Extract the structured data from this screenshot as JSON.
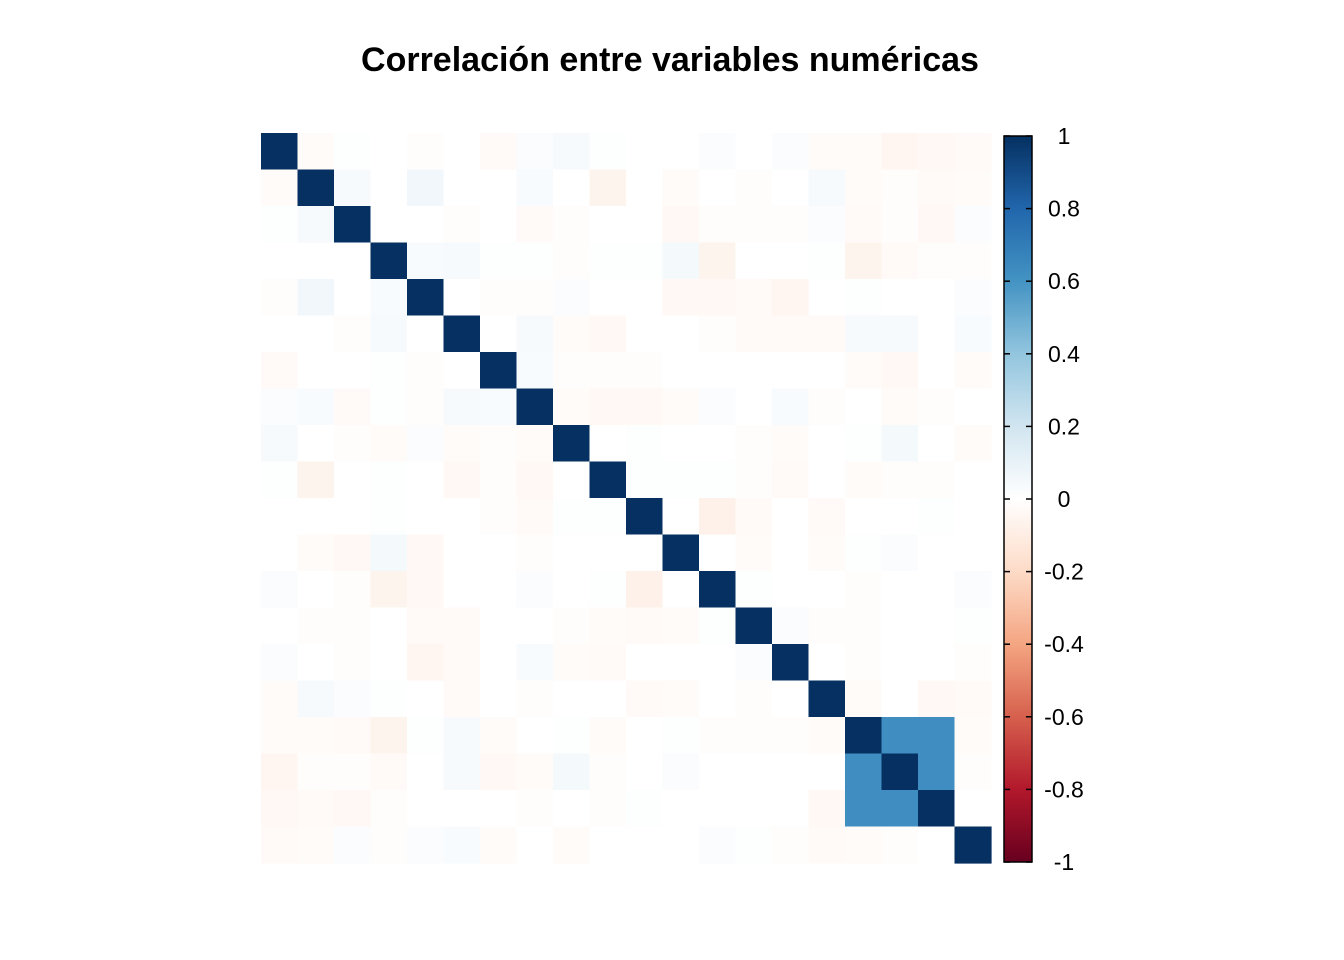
{
  "chart_data": {
    "type": "heatmap",
    "title": "Correlación entre variables numéricas",
    "xlabel": "",
    "ylabel": "",
    "n": 20,
    "value_range": [
      -1,
      1
    ],
    "legend": {
      "position": "right",
      "ticks": [
        "1",
        "0.8",
        "0.6",
        "0.4",
        "0.2",
        "0",
        "-0.2",
        "-0.4",
        "-0.6",
        "-0.8",
        "-1"
      ],
      "tick_values": [
        1,
        0.8,
        0.6,
        0.4,
        0.2,
        0,
        -0.2,
        -0.4,
        -0.6,
        -0.8,
        -1
      ]
    },
    "colorscale": [
      "#67001f",
      "#b2182b",
      "#d6604d",
      "#f4a582",
      "#fddbc7",
      "#ffffff",
      "#d1e5f0",
      "#92c5de",
      "#4393c3",
      "#2166ac",
      "#053061"
    ],
    "matrix": [
      [
        1,
        -0.02,
        0.01,
        0,
        -0.01,
        0,
        -0.03,
        0.02,
        0.04,
        0.01,
        0,
        0,
        0.02,
        0,
        0.02,
        -0.02,
        -0.02,
        -0.05,
        -0.04,
        -0.03
      ],
      [
        -0.02,
        1,
        0.04,
        0,
        0.06,
        0,
        0,
        0.03,
        0,
        -0.06,
        0,
        -0.02,
        0,
        -0.01,
        0,
        0.04,
        -0.02,
        -0.01,
        -0.03,
        -0.02
      ],
      [
        0.01,
        0.04,
        1,
        0,
        0,
        -0.01,
        0,
        -0.03,
        -0.01,
        0,
        0,
        -0.04,
        -0.01,
        -0.01,
        -0.01,
        0.02,
        -0.03,
        -0.01,
        -0.04,
        0.02
      ],
      [
        0,
        0,
        0,
        1,
        0.03,
        0.04,
        0.01,
        0.01,
        -0.01,
        0.01,
        0.01,
        0.05,
        -0.06,
        0,
        0,
        0.01,
        -0.06,
        -0.03,
        -0.01,
        -0.01
      ],
      [
        -0.01,
        0.06,
        0,
        0.03,
        1,
        0,
        -0.01,
        -0.01,
        0.02,
        0,
        0,
        -0.04,
        -0.04,
        -0.03,
        -0.05,
        0,
        0.01,
        0,
        0,
        0.02
      ],
      [
        0,
        0,
        -0.01,
        0.04,
        0,
        1,
        0,
        0.04,
        -0.02,
        -0.04,
        0,
        0,
        -0.01,
        -0.03,
        -0.03,
        -0.03,
        0.04,
        0.04,
        0,
        0.03
      ],
      [
        -0.03,
        0,
        0,
        0.01,
        -0.01,
        0,
        1,
        0.03,
        -0.01,
        -0.01,
        -0.01,
        0,
        0,
        0,
        0,
        0,
        -0.02,
        -0.04,
        0,
        -0.02
      ],
      [
        0.02,
        0.03,
        -0.03,
        0.01,
        -0.01,
        0.04,
        0.03,
        1,
        -0.02,
        -0.04,
        -0.04,
        -0.02,
        0.02,
        0,
        0.03,
        -0.01,
        0,
        -0.02,
        -0.01,
        0
      ],
      [
        0.04,
        0,
        -0.01,
        -0.02,
        0.02,
        -0.02,
        -0.01,
        -0.02,
        1,
        0,
        0.01,
        0,
        0,
        -0.01,
        -0.02,
        0,
        0.01,
        0.05,
        0,
        -0.02
      ],
      [
        0.01,
        -0.06,
        0,
        0.01,
        0,
        -0.04,
        -0.01,
        -0.04,
        0,
        1,
        0.01,
        0.01,
        0.01,
        -0.01,
        -0.03,
        0,
        -0.02,
        -0.01,
        -0.01,
        0
      ],
      [
        0,
        0,
        0,
        0.01,
        0,
        0,
        -0.01,
        -0.03,
        0.01,
        0.01,
        1,
        0,
        -0.08,
        -0.03,
        0,
        -0.03,
        0,
        0,
        0.01,
        0
      ],
      [
        0,
        -0.02,
        -0.04,
        0.05,
        -0.04,
        0,
        0,
        -0.01,
        0,
        0,
        0,
        1,
        0,
        -0.02,
        0,
        -0.02,
        0.01,
        0.02,
        0,
        0
      ],
      [
        0.02,
        0,
        -0.01,
        -0.06,
        -0.04,
        0,
        0,
        0.02,
        0,
        0.01,
        -0.08,
        0,
        1,
        0.01,
        0,
        0,
        -0.01,
        0,
        0,
        0.02
      ],
      [
        0,
        -0.01,
        -0.01,
        0,
        -0.03,
        -0.03,
        0,
        0,
        -0.01,
        -0.02,
        -0.03,
        -0.02,
        0.01,
        1,
        0.02,
        -0.01,
        -0.01,
        0,
        0,
        0.01
      ],
      [
        0.02,
        0,
        -0.01,
        0,
        -0.05,
        -0.03,
        0,
        0.03,
        -0.02,
        -0.03,
        0,
        0,
        0,
        0.02,
        1,
        0,
        -0.01,
        0,
        0,
        -0.01
      ],
      [
        -0.02,
        0.04,
        0.02,
        0.01,
        0,
        -0.03,
        0,
        -0.01,
        0,
        0,
        -0.03,
        -0.02,
        0,
        -0.01,
        0,
        1,
        -0.02,
        0,
        -0.04,
        -0.03
      ],
      [
        -0.02,
        -0.02,
        -0.03,
        -0.06,
        0.01,
        0.04,
        -0.02,
        0,
        0.01,
        -0.02,
        0,
        0.01,
        -0.01,
        -0.01,
        -0.01,
        -0.02,
        1,
        0.62,
        0.62,
        -0.02
      ],
      [
        -0.05,
        -0.01,
        -0.01,
        -0.03,
        0,
        0.04,
        -0.04,
        -0.02,
        0.05,
        -0.01,
        0,
        0.02,
        0,
        0,
        0,
        0,
        0.62,
        1,
        0.62,
        -0.01
      ],
      [
        -0.04,
        -0.03,
        -0.04,
        -0.01,
        0,
        0,
        0,
        -0.01,
        0,
        -0.01,
        0.01,
        0,
        0,
        0,
        0,
        -0.04,
        0.62,
        0.62,
        1,
        0
      ],
      [
        -0.03,
        -0.02,
        0.02,
        -0.01,
        0.02,
        0.03,
        -0.02,
        0,
        -0.02,
        0,
        0,
        0,
        0.02,
        0.01,
        -0.01,
        -0.03,
        -0.02,
        -0.01,
        0,
        1
      ]
    ]
  }
}
